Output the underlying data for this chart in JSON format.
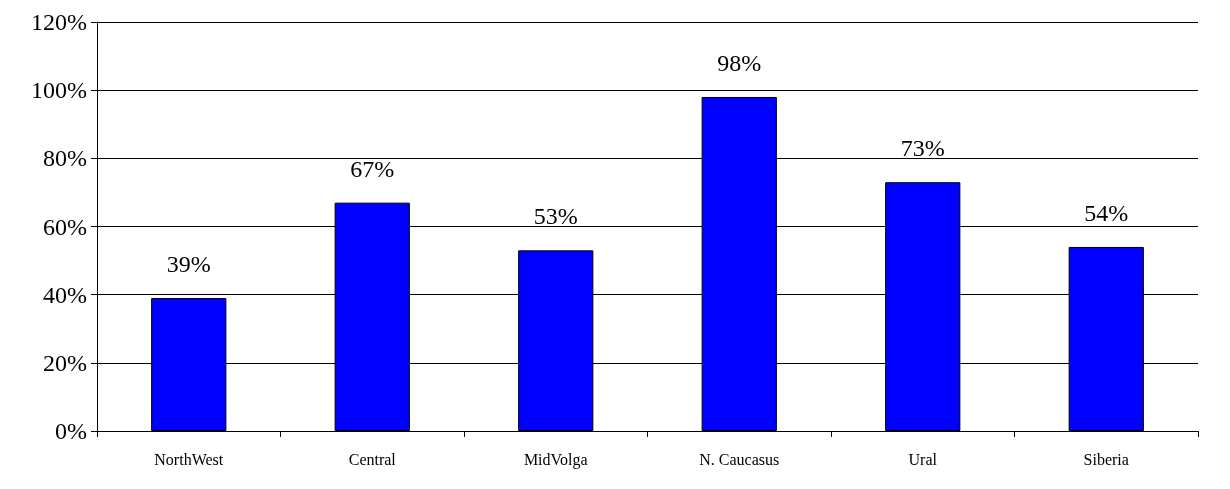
{
  "chart_data": {
    "type": "bar",
    "categories": [
      "NorthWest",
      "Central",
      "MidVolga",
      "N. Caucasus",
      "Ural",
      "Siberia"
    ],
    "values": [
      39,
      67,
      53,
      98,
      73,
      54
    ],
    "value_labels": [
      "39%",
      "67%",
      "53%",
      "98%",
      "73%",
      "54%"
    ],
    "color": "#0000ff",
    "ylim": [
      0,
      120
    ],
    "yticks": [
      {
        "value": 0,
        "label": "0%"
      },
      {
        "value": 20,
        "label": "20%"
      },
      {
        "value": 40,
        "label": "40%"
      },
      {
        "value": 60,
        "label": "60%"
      },
      {
        "value": 80,
        "label": "80%"
      },
      {
        "value": 100,
        "label": "100%"
      },
      {
        "value": 120,
        "label": "120%"
      }
    ],
    "grid": "y"
  }
}
